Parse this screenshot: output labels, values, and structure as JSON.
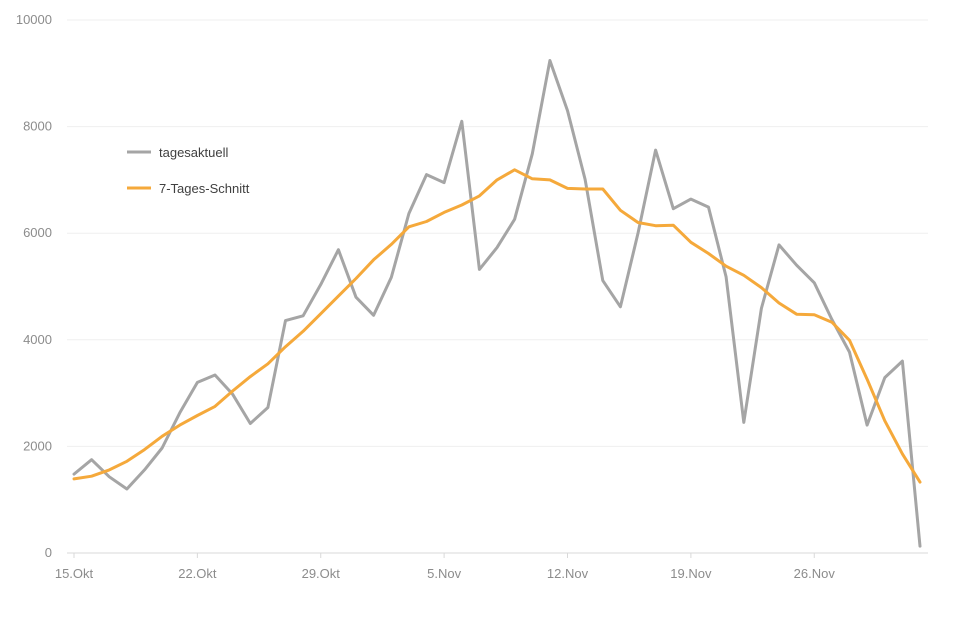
{
  "chart_data": {
    "type": "line",
    "title": "",
    "xlabel": "",
    "ylabel": "",
    "ylim": [
      0,
      10000
    ],
    "yticks": [
      0,
      2000,
      4000,
      6000,
      8000,
      10000
    ],
    "grid": true,
    "legend_position": "top-left",
    "x": [
      "15.Okt",
      "16.Okt",
      "17.Okt",
      "18.Okt",
      "19.Okt",
      "20.Okt",
      "21.Okt",
      "22.Okt",
      "23.Okt",
      "24.Okt",
      "25.Okt",
      "26.Okt",
      "27.Okt",
      "28.Okt",
      "29.Okt",
      "30.Okt",
      "31.Okt",
      "1.Nov",
      "2.Nov",
      "3.Nov",
      "4.Nov",
      "5.Nov",
      "6.Nov",
      "7.Nov",
      "8.Nov",
      "9.Nov",
      "10.Nov",
      "11.Nov",
      "12.Nov",
      "13.Nov",
      "14.Nov",
      "15.Nov",
      "16.Nov",
      "17.Nov",
      "18.Nov",
      "19.Nov",
      "20.Nov",
      "21.Nov",
      "22.Nov",
      "23.Nov",
      "24.Nov",
      "25.Nov",
      "26.Nov",
      "27.Nov",
      "28.Nov",
      "29.Nov",
      "30.Nov",
      "1.Dez",
      "2.Dez"
    ],
    "xtick_labels": [
      {
        "index": 0,
        "label": "15.Okt"
      },
      {
        "index": 7,
        "label": "22.Okt"
      },
      {
        "index": 14,
        "label": "29.Okt"
      },
      {
        "index": 21,
        "label": "5.Nov"
      },
      {
        "index": 28,
        "label": "12.Nov"
      },
      {
        "index": 35,
        "label": "19.Nov"
      },
      {
        "index": 42,
        "label": "26.Nov"
      }
    ],
    "series": [
      {
        "name": "tagesaktuell",
        "color": "#a5a5a5",
        "values": [
          1480,
          1750,
          1430,
          1200,
          1560,
          1970,
          2630,
          3200,
          3340,
          2980,
          2430,
          2730,
          4360,
          4450,
          5040,
          5690,
          4800,
          4460,
          5170,
          6370,
          7100,
          6950,
          8100,
          5320,
          5730,
          6260,
          7490,
          9240,
          8300,
          7010,
          5110,
          4620,
          6000,
          7560,
          6460,
          6640,
          6490,
          5180,
          2450,
          4590,
          5780,
          5400,
          5070,
          4380,
          3770,
          2400,
          3290,
          3600,
          130
        ]
      },
      {
        "name": "7-Tages-Schnitt",
        "color": "#f5a93b",
        "values": [
          1390,
          1440,
          1560,
          1720,
          1940,
          2190,
          2400,
          2580,
          2750,
          3040,
          3310,
          3550,
          3870,
          4160,
          4490,
          4820,
          5150,
          5500,
          5790,
          6120,
          6220,
          6390,
          6530,
          6700,
          7000,
          7190,
          7020,
          7000,
          6840,
          6830,
          6830,
          6430,
          6200,
          6140,
          6150,
          5830,
          5620,
          5380,
          5210,
          4980,
          4690,
          4480,
          4470,
          4330,
          3990,
          3260,
          2480,
          1860,
          1330
        ]
      }
    ]
  }
}
